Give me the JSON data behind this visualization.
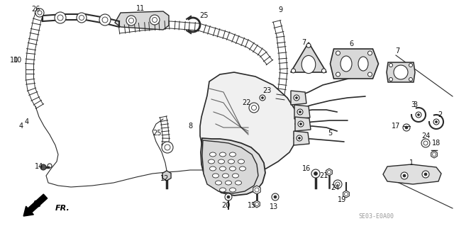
{
  "bg_color": "#ffffff",
  "fig_width": 6.4,
  "fig_height": 3.19,
  "dpi": 100,
  "watermark": "SE03-E0A00",
  "line_color": "#2a2a2a",
  "text_color": "#111111",
  "label_fontsize": 7.0,
  "coil_tube_color": "#333333",
  "gray_fill": "#d0d0d0",
  "light_gray": "#e8e8e8"
}
